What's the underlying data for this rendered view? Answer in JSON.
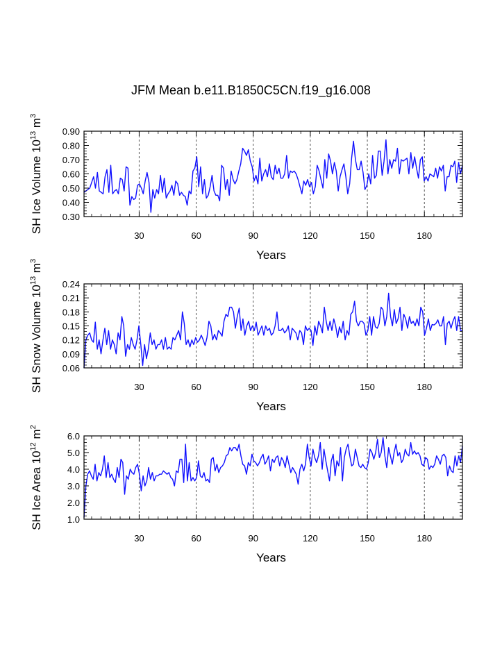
{
  "title": "JFM Mean b.e11.B1850C5CN.f19_g16.008",
  "colors": {
    "line": "#1010ff",
    "axis": "#000000",
    "grid": "#555555"
  },
  "chart_data": [
    {
      "type": "line",
      "ylabel_base": "SH Ice Volume 10",
      "ylabel_exp": "13",
      "ylabel_unit": " m",
      "ylabel_unit_exp": "3",
      "xlabel": "Years",
      "xlim": [
        1,
        200
      ],
      "ylim": [
        0.3,
        0.9
      ],
      "yticks": [
        "0.90",
        "0.80",
        "0.70",
        "0.60",
        "0.50",
        "0.40",
        "0.30"
      ],
      "ytick_values": [
        0.9,
        0.8,
        0.7,
        0.6,
        0.5,
        0.4,
        0.3
      ],
      "xticks": [
        "30",
        "60",
        "90",
        "120",
        "150",
        "180"
      ],
      "xtick_values": [
        30,
        60,
        90,
        120,
        150,
        180
      ],
      "grid_x": [
        30,
        60,
        90,
        120,
        150,
        180
      ],
      "series": [
        {
          "name": "SH Ice Volume",
          "values": [
            0.47,
            0.48,
            0.49,
            0.5,
            0.54,
            0.58,
            0.5,
            0.61,
            0.48,
            0.47,
            0.46,
            0.58,
            0.63,
            0.47,
            0.66,
            0.46,
            0.48,
            0.49,
            0.46,
            0.57,
            0.56,
            0.48,
            0.65,
            0.64,
            0.38,
            0.44,
            0.42,
            0.43,
            0.52,
            0.53,
            0.5,
            0.46,
            0.55,
            0.61,
            0.54,
            0.33,
            0.49,
            0.43,
            0.49,
            0.46,
            0.59,
            0.47,
            0.57,
            0.43,
            0.46,
            0.48,
            0.52,
            0.45,
            0.55,
            0.53,
            0.45,
            0.47,
            0.45,
            0.44,
            0.38,
            0.48,
            0.46,
            0.62,
            0.64,
            0.72,
            0.51,
            0.65,
            0.46,
            0.56,
            0.43,
            0.45,
            0.51,
            0.59,
            0.48,
            0.45,
            0.45,
            0.41,
            0.66,
            0.64,
            0.49,
            0.56,
            0.45,
            0.62,
            0.56,
            0.53,
            0.56,
            0.62,
            0.67,
            0.78,
            0.76,
            0.73,
            0.77,
            0.69,
            0.65,
            0.55,
            0.59,
            0.53,
            0.71,
            0.55,
            0.6,
            0.63,
            0.58,
            0.67,
            0.58,
            0.56,
            0.66,
            0.6,
            0.64,
            0.57,
            0.57,
            0.6,
            0.73,
            0.57,
            0.62,
            0.61,
            0.62,
            0.6,
            0.56,
            0.51,
            0.46,
            0.55,
            0.52,
            0.56,
            0.51,
            0.54,
            0.46,
            0.51,
            0.66,
            0.62,
            0.56,
            0.5,
            0.7,
            0.57,
            0.74,
            0.69,
            0.6,
            0.68,
            0.62,
            0.48,
            0.58,
            0.63,
            0.67,
            0.58,
            0.46,
            0.53,
            0.71,
            0.83,
            0.7,
            0.63,
            0.63,
            0.69,
            0.61,
            0.49,
            0.52,
            0.6,
            0.53,
            0.73,
            0.57,
            0.59,
            0.76,
            0.76,
            0.59,
            0.69,
            0.84,
            0.6,
            0.7,
            0.64,
            0.7,
            0.69,
            0.78,
            0.6,
            0.7,
            0.69,
            0.7,
            0.71,
            0.6,
            0.75,
            0.64,
            0.72,
            0.64,
            0.57,
            0.7,
            0.72,
            0.55,
            0.58,
            0.55,
            0.6,
            0.59,
            0.58,
            0.64,
            0.57,
            0.65,
            0.62,
            0.66,
            0.48,
            0.58,
            0.58,
            0.66,
            0.65,
            0.69,
            0.54,
            0.68,
            0.6,
            0.66
          ]
        }
      ]
    },
    {
      "type": "line",
      "ylabel_base": "SH Snow Volume 10",
      "ylabel_exp": "13",
      "ylabel_unit": " m",
      "ylabel_unit_exp": "3",
      "xlabel": "Years",
      "xlim": [
        1,
        200
      ],
      "ylim": [
        0.06,
        0.24
      ],
      "yticks": [
        "0.24",
        "0.21",
        "0.18",
        "0.15",
        "0.12",
        "0.09",
        "0.06"
      ],
      "ytick_values": [
        0.24,
        0.21,
        0.18,
        0.15,
        0.12,
        0.09,
        0.06
      ],
      "xticks": [
        "30",
        "60",
        "90",
        "120",
        "150",
        "180"
      ],
      "xtick_values": [
        30,
        60,
        90,
        120,
        150,
        180
      ],
      "grid_x": [
        30,
        60,
        90,
        120,
        150,
        180
      ],
      "series": [
        {
          "name": "SH Snow Volume",
          "values": [
            0.06,
            0.12,
            0.13,
            0.135,
            0.12,
            0.115,
            0.158,
            0.1,
            0.12,
            0.09,
            0.12,
            0.145,
            0.11,
            0.14,
            0.1,
            0.12,
            0.11,
            0.09,
            0.135,
            0.12,
            0.17,
            0.15,
            0.085,
            0.11,
            0.1,
            0.125,
            0.11,
            0.1,
            0.12,
            0.15,
            0.11,
            0.065,
            0.11,
            0.08,
            0.1,
            0.135,
            0.11,
            0.12,
            0.1,
            0.11,
            0.11,
            0.12,
            0.1,
            0.125,
            0.1,
            0.105,
            0.1,
            0.125,
            0.12,
            0.13,
            0.14,
            0.12,
            0.18,
            0.155,
            0.11,
            0.12,
            0.105,
            0.12,
            0.11,
            0.125,
            0.115,
            0.12,
            0.13,
            0.12,
            0.108,
            0.125,
            0.16,
            0.15,
            0.12,
            0.132,
            0.12,
            0.14,
            0.135,
            0.128,
            0.16,
            0.175,
            0.17,
            0.19,
            0.19,
            0.18,
            0.145,
            0.17,
            0.188,
            0.14,
            0.165,
            0.13,
            0.15,
            0.16,
            0.14,
            0.15,
            0.14,
            0.158,
            0.13,
            0.14,
            0.15,
            0.13,
            0.15,
            0.14,
            0.145,
            0.13,
            0.135,
            0.15,
            0.18,
            0.14,
            0.14,
            0.145,
            0.135,
            0.14,
            0.15,
            0.12,
            0.145,
            0.14,
            0.135,
            0.12,
            0.14,
            0.135,
            0.11,
            0.15,
            0.14,
            0.145,
            0.14,
            0.108,
            0.15,
            0.13,
            0.16,
            0.15,
            0.135,
            0.19,
            0.16,
            0.14,
            0.16,
            0.14,
            0.165,
            0.15,
            0.125,
            0.148,
            0.135,
            0.16,
            0.12,
            0.14,
            0.13,
            0.175,
            0.18,
            0.203,
            0.16,
            0.15,
            0.16,
            0.16,
            0.155,
            0.13,
            0.14,
            0.17,
            0.13,
            0.17,
            0.148,
            0.145,
            0.155,
            0.19,
            0.185,
            0.15,
            0.17,
            0.22,
            0.17,
            0.15,
            0.185,
            0.155,
            0.165,
            0.19,
            0.14,
            0.175,
            0.165,
            0.145,
            0.17,
            0.155,
            0.16,
            0.15,
            0.165,
            0.15,
            0.19,
            0.18,
            0.13,
            0.145,
            0.165,
            0.14,
            0.153,
            0.152,
            0.155,
            0.163,
            0.15,
            0.15,
            0.17,
            0.11,
            0.155,
            0.16,
            0.145,
            0.16,
            0.17,
            0.14,
            0.17,
            0.14,
            0.14
          ]
        }
      ]
    },
    {
      "type": "line",
      "ylabel_base": "SH Ice Area 10",
      "ylabel_exp": "12",
      "ylabel_unit": " m",
      "ylabel_unit_exp": "2",
      "xlabel": "Years",
      "xlim": [
        1,
        200
      ],
      "ylim": [
        1.0,
        6.0
      ],
      "yticks": [
        "6.0",
        "5.0",
        "4.0",
        "3.0",
        "2.0",
        "1.0"
      ],
      "ytick_values": [
        6.0,
        5.0,
        4.0,
        3.0,
        2.0,
        1.0
      ],
      "xticks": [
        "30",
        "60",
        "90",
        "120",
        "150",
        "180"
      ],
      "xtick_values": [
        30,
        60,
        90,
        120,
        150,
        180
      ],
      "grid_x": [
        30,
        60,
        90,
        120,
        150,
        180
      ],
      "series": [
        {
          "name": "SH Ice Area",
          "values": [
            1.1,
            3.0,
            3.7,
            3.9,
            3.6,
            3.4,
            4.3,
            3.3,
            3.8,
            3.6,
            4.0,
            4.8,
            3.5,
            4.4,
            3.5,
            3.7,
            3.4,
            3.2,
            4.1,
            3.5,
            4.6,
            4.4,
            2.5,
            3.6,
            3.4,
            4.0,
            3.8,
            3.7,
            4.1,
            4.3,
            3.7,
            2.7,
            3.6,
            3.0,
            3.3,
            4.1,
            3.4,
            3.8,
            3.3,
            3.6,
            3.6,
            3.7,
            3.7,
            3.9,
            3.8,
            3.7,
            3.8,
            3.5,
            3.4,
            3.0,
            3.9,
            3.8,
            4.6,
            4.6,
            3.2,
            5.5,
            3.3,
            4.4,
            3.3,
            3.5,
            3.3,
            3.5,
            4.5,
            3.6,
            3.5,
            3.8,
            3.3,
            3.4,
            3.2,
            4.6,
            4.7,
            3.9,
            4.3,
            3.8,
            4.1,
            4.2,
            4.4,
            4.8,
            4.9,
            5.3,
            5.1,
            5.3,
            5.3,
            5.1,
            5.5,
            4.8,
            4.3,
            4.2,
            3.7,
            4.4,
            4.2,
            4.9,
            4.5,
            4.4,
            4.2,
            4.4,
            4.7,
            4.9,
            4.3,
            4.5,
            4.8,
            3.9,
            4.6,
            4.4,
            4.7,
            4.8,
            4.2,
            4.7,
            4.5,
            4.1,
            4.8,
            4.3,
            3.8,
            4.1,
            3.9,
            3.7,
            3.1,
            4.0,
            4.3,
            3.9,
            4.3,
            5.5,
            4.7,
            4.2,
            5.2,
            4.7,
            4.4,
            4.8,
            5.6,
            4.0,
            5.2,
            4.5,
            3.9,
            3.3,
            4.5,
            4.9,
            3.6,
            4.5,
            4.2,
            5.3,
            3.3,
            4.7,
            5.2,
            5.5,
            4.8,
            4.2,
            4.3,
            5.2,
            4.7,
            4.2,
            4.1,
            4.3,
            4.1,
            4.0,
            4.4,
            5.2,
            5.0,
            4.6,
            5.0,
            5.8,
            4.7,
            5.0,
            5.9,
            4.8,
            4.1,
            5.3,
            4.8,
            4.3,
            5.0,
            5.5,
            4.8,
            5.0,
            4.4,
            4.6,
            5.2,
            4.9,
            4.8,
            5.6,
            4.9,
            5.1,
            4.9,
            5.0,
            4.8,
            4.3,
            4.2,
            4.7,
            4.6,
            4.0,
            4.2,
            4.1,
            4.3,
            4.8,
            4.6,
            4.3,
            4.8,
            4.9,
            4.7,
            3.6,
            4.2,
            3.9,
            3.8,
            4.8,
            4.2,
            4.8,
            4.4,
            5.4
          ]
        }
      ]
    }
  ]
}
